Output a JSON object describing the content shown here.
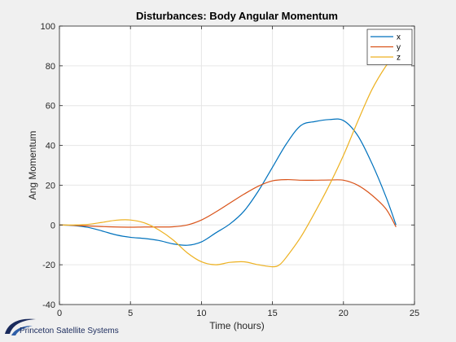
{
  "chart_data": {
    "type": "line",
    "title": "Disturbances: Body Angular Momentum",
    "xlabel": "Time (hours)",
    "ylabel": "Ang Momentum",
    "xlim": [
      0,
      25
    ],
    "ylim": [
      -40,
      100
    ],
    "xticks": [
      0,
      5,
      10,
      15,
      20,
      25
    ],
    "yticks": [
      -40,
      -20,
      0,
      20,
      40,
      60,
      80,
      100
    ],
    "grid": true,
    "legend_position": "top-right",
    "series": [
      {
        "name": "x",
        "color": "#0072BD",
        "x": [
          0,
          1,
          2,
          3,
          4,
          5,
          6,
          7,
          8,
          9,
          10,
          11,
          12,
          13,
          14,
          15,
          16,
          17,
          18,
          19,
          20,
          21,
          22,
          23,
          23.7
        ],
        "y": [
          0,
          -0.3,
          -1.2,
          -3,
          -5,
          -6.2,
          -6.8,
          -7.8,
          -9.5,
          -10.2,
          -8.5,
          -4,
          0.5,
          7,
          17,
          29,
          41,
          50,
          52,
          53,
          52.5,
          45,
          31,
          14,
          0
        ]
      },
      {
        "name": "y",
        "color": "#D95319",
        "x": [
          0,
          1,
          2,
          3,
          4,
          5,
          6,
          7,
          8,
          9,
          10,
          11,
          12,
          13,
          14,
          15,
          16,
          17,
          18,
          19,
          20,
          21,
          22,
          23,
          23.7
        ],
        "y": [
          0,
          -0.2,
          -0.5,
          -0.8,
          -1,
          -1.1,
          -1,
          -1,
          -0.9,
          0,
          2.5,
          6.5,
          11,
          15.5,
          19.5,
          22.2,
          22.8,
          22.5,
          22.5,
          22.6,
          22.5,
          20,
          15,
          8,
          -1
        ]
      },
      {
        "name": "z",
        "color": "#EDB120",
        "x": [
          0,
          1,
          2,
          3,
          4,
          5,
          6,
          7,
          8,
          9,
          10,
          11,
          12,
          13,
          14,
          15,
          15.5,
          16,
          17,
          18,
          19,
          20,
          21,
          22,
          23,
          23.5
        ],
        "y": [
          0,
          0,
          0.3,
          1.3,
          2.4,
          2.5,
          1,
          -2.5,
          -7.5,
          -14,
          -18.5,
          -20,
          -18.8,
          -18.5,
          -20,
          -21,
          -20,
          -16,
          -6,
          6.5,
          20,
          35,
          52,
          68,
          80,
          84
        ]
      }
    ]
  },
  "branding": {
    "logo_text": "Princeton Satellite Systems",
    "logo_color": "#1a2a5c"
  }
}
